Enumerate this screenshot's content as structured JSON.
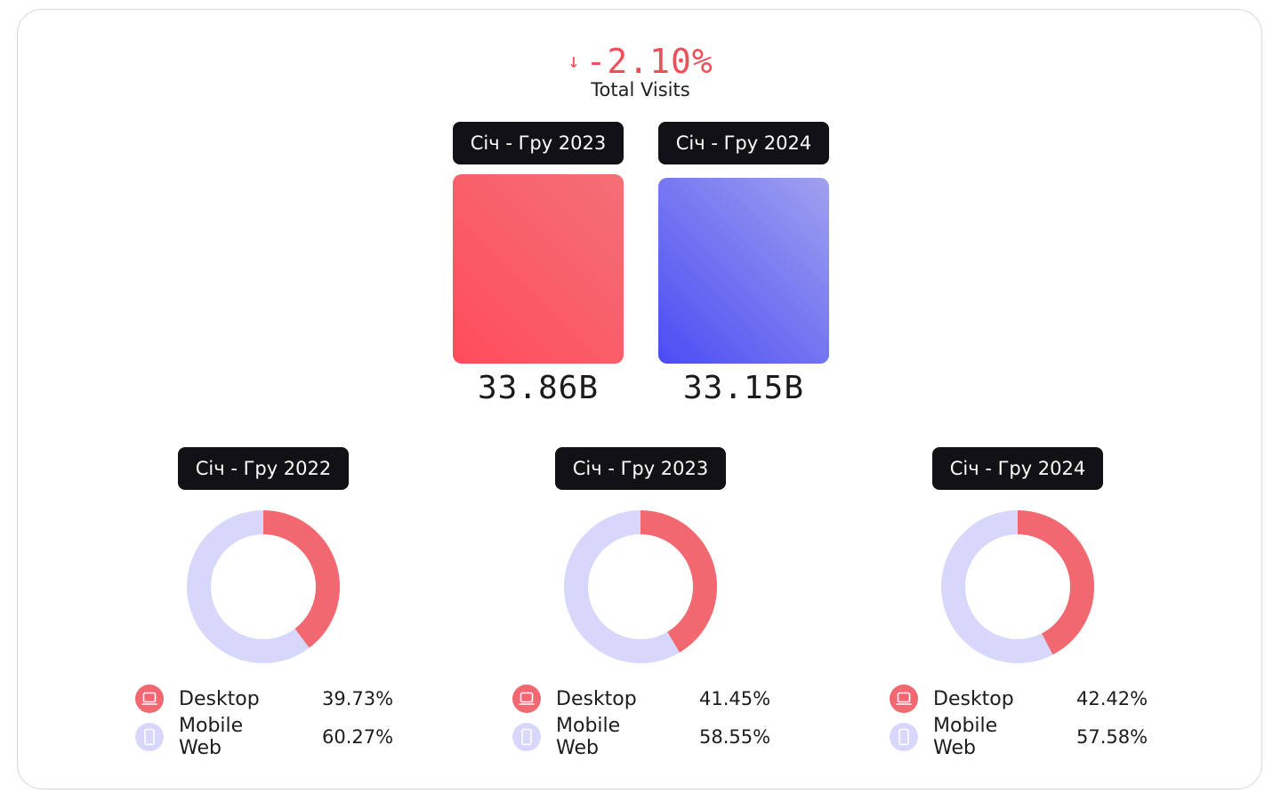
{
  "summary": {
    "arrow": "↓",
    "change": "-2.10%",
    "label": "Total Visits"
  },
  "colors": {
    "desktop": "#f16871",
    "mobile": "#d6d7fb",
    "negative": "#f04f5a",
    "bar_2023": "#ff4c5c",
    "bar_2024": "#4a4cf4"
  },
  "chart_data": [
    {
      "type": "bar",
      "categories": [
        "Січ - Гру 2023",
        "Січ - Гру 2024"
      ],
      "values": [
        33.86,
        33.15
      ],
      "value_labels": [
        "33.86B",
        "33.15B"
      ],
      "unit": "B"
    },
    {
      "type": "pie",
      "title": "Січ - Гру 2022",
      "slices": [
        {
          "label": "Desktop",
          "value": 39.73,
          "display": "39.73%",
          "icon": "laptop-icon"
        },
        {
          "label": "Mobile Web",
          "value": 60.27,
          "display": "60.27%",
          "icon": "phone-icon"
        }
      ]
    },
    {
      "type": "pie",
      "title": "Січ - Гру 2023",
      "slices": [
        {
          "label": "Desktop",
          "value": 41.45,
          "display": "41.45%",
          "icon": "laptop-icon"
        },
        {
          "label": "Mobile Web",
          "value": 58.55,
          "display": "58.55%",
          "icon": "phone-icon"
        }
      ]
    },
    {
      "type": "pie",
      "title": "Січ - Гру 2024",
      "slices": [
        {
          "label": "Desktop",
          "value": 42.42,
          "display": "42.42%",
          "icon": "laptop-icon"
        },
        {
          "label": "Mobile Web",
          "value": 57.58,
          "display": "57.58%",
          "icon": "phone-icon"
        }
      ]
    }
  ]
}
